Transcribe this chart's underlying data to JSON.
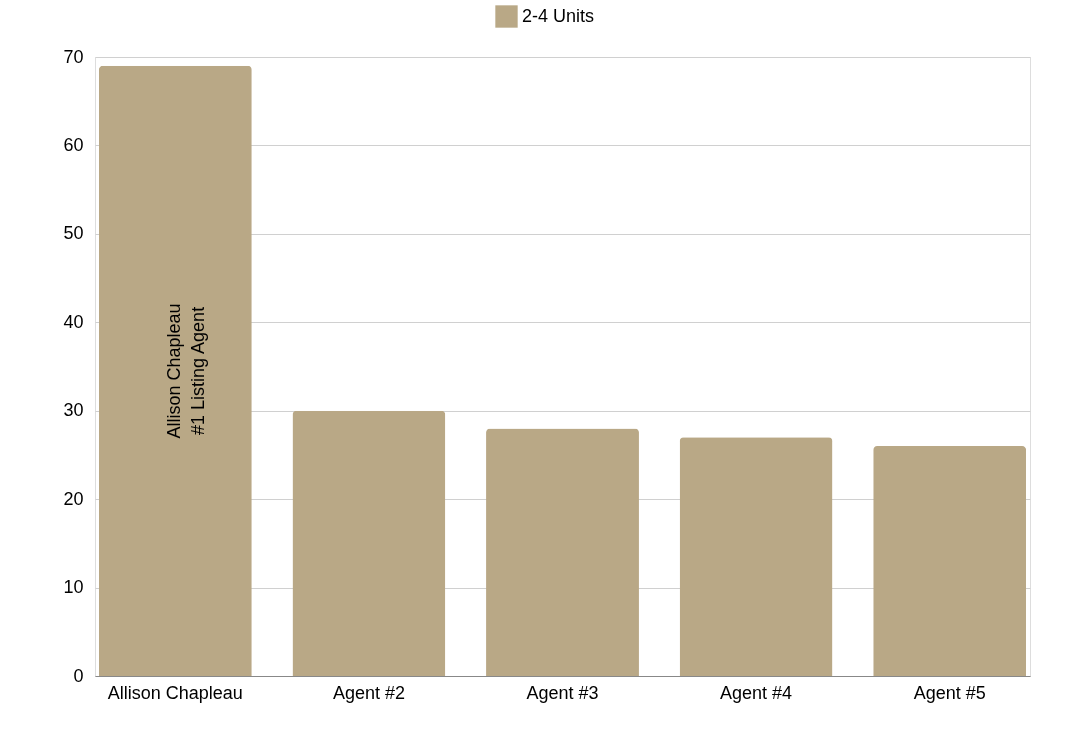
{
  "chart_data": {
    "type": "bar",
    "categories": [
      "Allison Chapleau",
      "Agent #2",
      "Agent #3",
      "Agent #4",
      "Agent #5"
    ],
    "series": [
      {
        "name": "2-4 Units",
        "color": "#b9a886",
        "values": [
          69,
          30,
          28,
          27,
          26
        ]
      }
    ],
    "ylim": [
      0,
      70
    ],
    "yticks": [
      0,
      10,
      20,
      30,
      40,
      50,
      60,
      70
    ],
    "annotations": [
      "Allison Chapleau\n#1 Listing Agent"
    ],
    "grid": "y",
    "legend": "top"
  }
}
